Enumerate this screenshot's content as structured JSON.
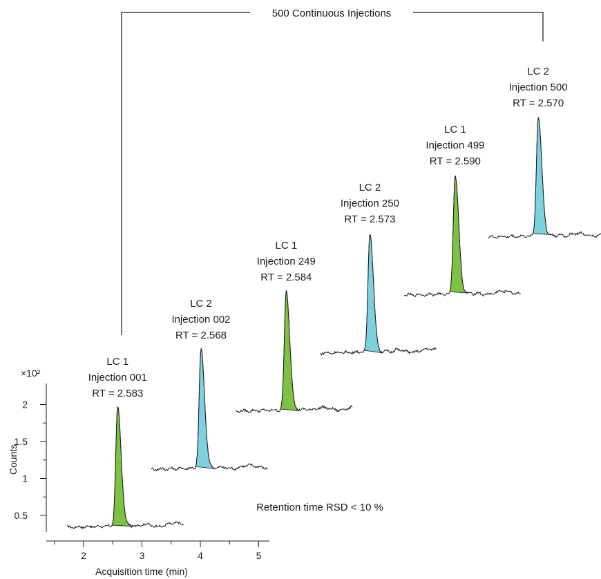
{
  "chart_data": {
    "type": "line",
    "title": "500 Continuous Injections",
    "xlabel": "Acquisition time (min)",
    "ylabel": "Counts",
    "y_multiplier": "×10²",
    "xlim": [
      1.5,
      5.0
    ],
    "ylim": [
      0.3,
      2.3
    ],
    "xticks": [
      2,
      3,
      4,
      5
    ],
    "xtick_labels": [
      "2",
      "3",
      "4",
      "5"
    ],
    "yticks": [
      0.5,
      1,
      1.5,
      2
    ],
    "ytick_labels": [
      "0.5",
      "1",
      "1.5",
      "2"
    ],
    "grid": false,
    "annotation": "Retention time RSD < 10 %",
    "series": [
      {
        "lc": "LC 1",
        "injection": "Injection 001",
        "rt_label": "RT = 2.583",
        "rt": 2.583,
        "peak": 1.95,
        "color": "#7dc242"
      },
      {
        "lc": "LC 2",
        "injection": "Injection 002",
        "rt_label": "RT = 2.568",
        "rt": 2.568,
        "peak": 1.95,
        "color": "#7fd1df"
      },
      {
        "lc": "LC 1",
        "injection": "Injection 249",
        "rt_label": "RT = 2.584",
        "rt": 2.584,
        "peak": 1.95,
        "color": "#7dc242"
      },
      {
        "lc": "LC 2",
        "injection": "Injection 250",
        "rt_label": "RT = 2.573",
        "rt": 2.573,
        "peak": 1.95,
        "color": "#7fd1df"
      },
      {
        "lc": "LC 1",
        "injection": "Injection 499",
        "rt_label": "RT = 2.590",
        "rt": 2.59,
        "peak": 1.95,
        "color": "#7dc242"
      },
      {
        "lc": "LC 2",
        "injection": "Injection 500",
        "rt_label": "RT = 2.570",
        "rt": 2.57,
        "peak": 1.95,
        "color": "#7fd1df"
      }
    ]
  }
}
